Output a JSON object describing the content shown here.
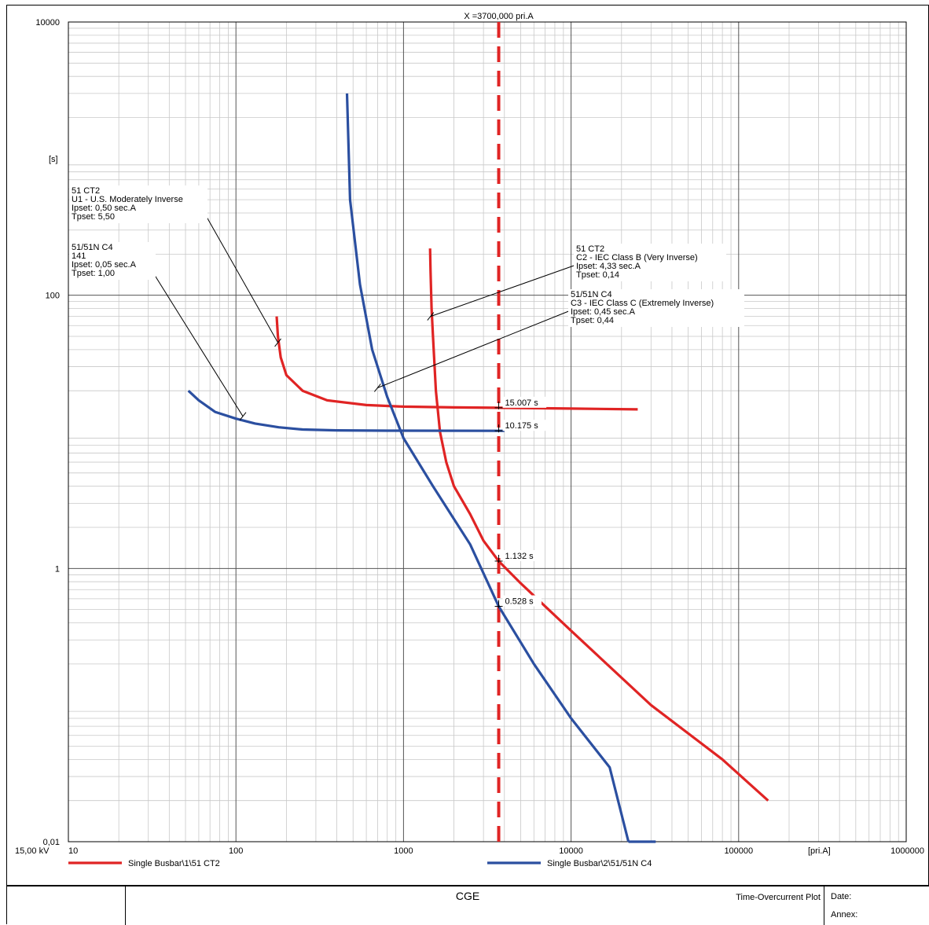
{
  "chart_data": {
    "type": "line",
    "title": "",
    "xscale": "log",
    "yscale": "log",
    "xlim": [
      10,
      1000000
    ],
    "ylim": [
      0.01,
      10000
    ],
    "xlabel": "[pri.A]",
    "ylabel": "[s]",
    "voltage_label": "15,00 kV",
    "x_ticks": [
      {
        "value": 10,
        "label": "10"
      },
      {
        "value": 100,
        "label": "100"
      },
      {
        "value": 1000,
        "label": "1000"
      },
      {
        "value": 10000,
        "label": "10000"
      },
      {
        "value": 100000,
        "label": "100000"
      },
      {
        "value": 1000000,
        "label": "1000000"
      }
    ],
    "y_ticks": [
      {
        "value": 10000,
        "label": "10000"
      },
      {
        "value": 100,
        "label": "100"
      },
      {
        "value": 1,
        "label": "1"
      },
      {
        "value": 0.01,
        "label": "0,01"
      }
    ],
    "grid": true,
    "series": [
      {
        "name": "Single Busbar\\1\\51 CT2",
        "color": "#e02424",
        "segments": [
          [
            [
              175,
              70
            ],
            [
              178,
              50
            ],
            [
              185,
              35
            ],
            [
              200,
              26
            ],
            [
              250,
              20
            ],
            [
              350,
              17
            ],
            [
              600,
              15.7
            ],
            [
              1000,
              15.3
            ],
            [
              2000,
              15.1
            ],
            [
              3700,
              15.007
            ],
            [
              10000,
              14.8
            ],
            [
              25000,
              14.6
            ]
          ],
          [
            [
              1440,
              220
            ],
            [
              1450,
              150
            ],
            [
              1470,
              80
            ],
            [
              1500,
              50
            ],
            [
              1560,
              20
            ],
            [
              1650,
              10
            ],
            [
              1800,
              6
            ],
            [
              2000,
              4
            ],
            [
              2500,
              2.5
            ],
            [
              3000,
              1.6
            ],
            [
              3700,
              1.132
            ],
            [
              5000,
              0.78
            ],
            [
              10000,
              0.35
            ],
            [
              30000,
              0.1
            ],
            [
              80000,
              0.04
            ],
            [
              150000,
              0.02
            ]
          ]
        ]
      },
      {
        "name": "Single Busbar\\2\\51/51N C4",
        "color": "#2b4fa0",
        "segments": [
          [
            [
              52,
              20
            ],
            [
              60,
              17
            ],
            [
              75,
              14
            ],
            [
              100,
              12.5
            ],
            [
              130,
              11.5
            ],
            [
              180,
              10.8
            ],
            [
              250,
              10.4
            ],
            [
              400,
              10.25
            ],
            [
              800,
              10.2
            ],
            [
              3700,
              10.175
            ],
            [
              4000,
              10.175
            ]
          ],
          [
            [
              460,
              3000
            ],
            [
              480,
              500
            ],
            [
              550,
              120
            ],
            [
              650,
              40
            ],
            [
              800,
              18
            ],
            [
              1000,
              9
            ],
            [
              1500,
              4
            ],
            [
              2500,
              1.5
            ],
            [
              3700,
              0.528
            ],
            [
              6000,
              0.2
            ],
            [
              10000,
              0.08
            ],
            [
              17000,
              0.035
            ],
            [
              22000,
              0.01
            ]
          ],
          [
            [
              22000,
              0.01
            ],
            [
              32000,
              0.01
            ]
          ]
        ]
      }
    ],
    "vertical_marker": {
      "x": 3700,
      "label": "X =3700,000 pri.A",
      "color": "#e02424"
    },
    "point_labels": [
      {
        "x": 3700,
        "y": 15.007,
        "label": "15.007 s",
        "color": "#e02424"
      },
      {
        "x": 3700,
        "y": 10.175,
        "label": "10.175 s",
        "color": "#000000"
      },
      {
        "x": 3700,
        "y": 1.132,
        "label": "1.132 s",
        "color": "#000000"
      },
      {
        "x": 3700,
        "y": 0.528,
        "label": "0.528 s",
        "color": "#000000"
      }
    ],
    "annotations": [
      {
        "lines": [
          "51 CT2",
          "U1 - U.S. Moderately Inverse",
          "Ipset: 0,50 sec.A",
          "Tpset: 5,50"
        ],
        "target": [
          178,
          45
        ]
      },
      {
        "lines": [
          "51/51N C4",
          "141",
          "Ipset: 0,05 sec.A",
          "Tpset: 1,00"
        ],
        "target": [
          110,
          13
        ]
      },
      {
        "lines": [
          "51 CT2",
          "C2 - IEC Class B (Very Inverse)",
          "Ipset: 4,33 sec.A",
          "Tpset: 0,14"
        ],
        "target": [
          1450,
          70
        ]
      },
      {
        "lines": [
          "51/51N C4",
          "C3 - IEC Class C (Extremely Inverse)",
          "Ipset: 0,45 sec.A",
          "Tpset: 0,44"
        ],
        "target": [
          700,
          21
        ]
      }
    ]
  },
  "footer": {
    "company": "CGE",
    "plot_title": "Time-Overcurrent Plot",
    "date_label": "Date:",
    "annex_label": "Annex:"
  }
}
